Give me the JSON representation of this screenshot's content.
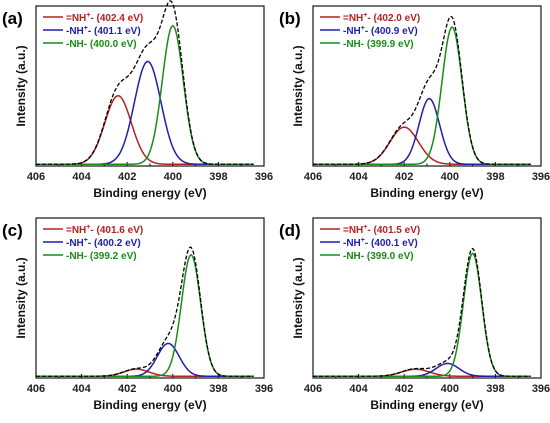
{
  "chart_data": [
    {
      "type": "line",
      "panel_label": "(a)",
      "xlabel": "Binding energy (eV)",
      "ylabel": "Intensity (a.u.)",
      "xlim": [
        406,
        396
      ],
      "xticks": [
        406,
        404,
        402,
        400,
        398,
        396
      ],
      "x_reversed": true,
      "grid": false,
      "legend_position": "top-left",
      "series": [
        {
          "name_pre": "=NH",
          "name_sup": "+",
          "name_post": "- (402.4 eV)",
          "color": "#b22222",
          "center": 402.4,
          "amplitude": 0.48,
          "sigma": 0.58
        },
        {
          "name_pre": "-NH",
          "name_sup": "+",
          "name_post": "- (401.1 eV)",
          "color": "#1f1fa8",
          "center": 401.1,
          "amplitude": 0.72,
          "sigma": 0.58
        },
        {
          "name_pre": "-NH- (400.0 eV)",
          "name_sup": "",
          "name_post": "",
          "color": "#1a8c1a",
          "center": 400.0,
          "amplitude": 0.97,
          "sigma": 0.46
        }
      ]
    },
    {
      "type": "line",
      "panel_label": "(b)",
      "xlabel": "Binding energy (eV)",
      "ylabel": "Intensity (a.u.)",
      "xlim": [
        406,
        396
      ],
      "xticks": [
        406,
        404,
        402,
        400,
        398,
        396
      ],
      "x_reversed": true,
      "grid": false,
      "legend_position": "top-left",
      "series": [
        {
          "name_pre": "=NH",
          "name_sup": "+",
          "name_post": "- (402.0 eV)",
          "color": "#b22222",
          "center": 402.0,
          "amplitude": 0.26,
          "sigma": 0.62
        },
        {
          "name_pre": "-NH",
          "name_sup": "+",
          "name_post": "- (400.9 eV)",
          "color": "#1f1fa8",
          "center": 400.9,
          "amplitude": 0.46,
          "sigma": 0.45
        },
        {
          "name_pre": "-NH- (399.9 eV)",
          "name_sup": "",
          "name_post": "",
          "color": "#1a8c1a",
          "center": 399.9,
          "amplitude": 0.96,
          "sigma": 0.44
        }
      ]
    },
    {
      "type": "line",
      "panel_label": "(c)",
      "xlabel": "Binding energy (eV)",
      "ylabel": "Intensity (a.u.)",
      "xlim": [
        406,
        396
      ],
      "xticks": [
        406,
        404,
        402,
        400,
        398,
        396
      ],
      "x_reversed": true,
      "grid": false,
      "legend_position": "top-left",
      "series": [
        {
          "name_pre": "=NH",
          "name_sup": "+",
          "name_post": "- (401.6 eV)",
          "color": "#b22222",
          "center": 401.6,
          "amplitude": 0.05,
          "sigma": 0.55
        },
        {
          "name_pre": "-NH",
          "name_sup": "+",
          "name_post": "- (400.2 eV)",
          "color": "#1f1fa8",
          "center": 400.2,
          "amplitude": 0.23,
          "sigma": 0.48
        },
        {
          "name_pre": "-NH- (399.2 eV)",
          "name_sup": "",
          "name_post": "",
          "color": "#1a8c1a",
          "center": 399.2,
          "amplitude": 0.85,
          "sigma": 0.42
        }
      ]
    },
    {
      "type": "line",
      "panel_label": "(d)",
      "xlabel": "Binding energy (eV)",
      "ylabel": "Intensity (a.u.)",
      "xlim": [
        406,
        396
      ],
      "xticks": [
        406,
        404,
        402,
        400,
        398,
        396
      ],
      "x_reversed": true,
      "grid": false,
      "legend_position": "top-left",
      "series": [
        {
          "name_pre": "=NH",
          "name_sup": "+",
          "name_post": "- (401.5 eV)",
          "color": "#b22222",
          "center": 401.5,
          "amplitude": 0.05,
          "sigma": 0.6
        },
        {
          "name_pre": "-NH",
          "name_sup": "+",
          "name_post": "- (400.1 eV)",
          "color": "#1f1fa8",
          "center": 400.1,
          "amplitude": 0.09,
          "sigma": 0.5
        },
        {
          "name_pre": "-NH- (399.0 eV)",
          "name_sup": "",
          "name_post": "",
          "color": "#1a8c1a",
          "center": 399.0,
          "amplitude": 0.86,
          "sigma": 0.4
        }
      ]
    }
  ],
  "colors": {
    "envelope": "#000000",
    "axis": "#000000"
  }
}
